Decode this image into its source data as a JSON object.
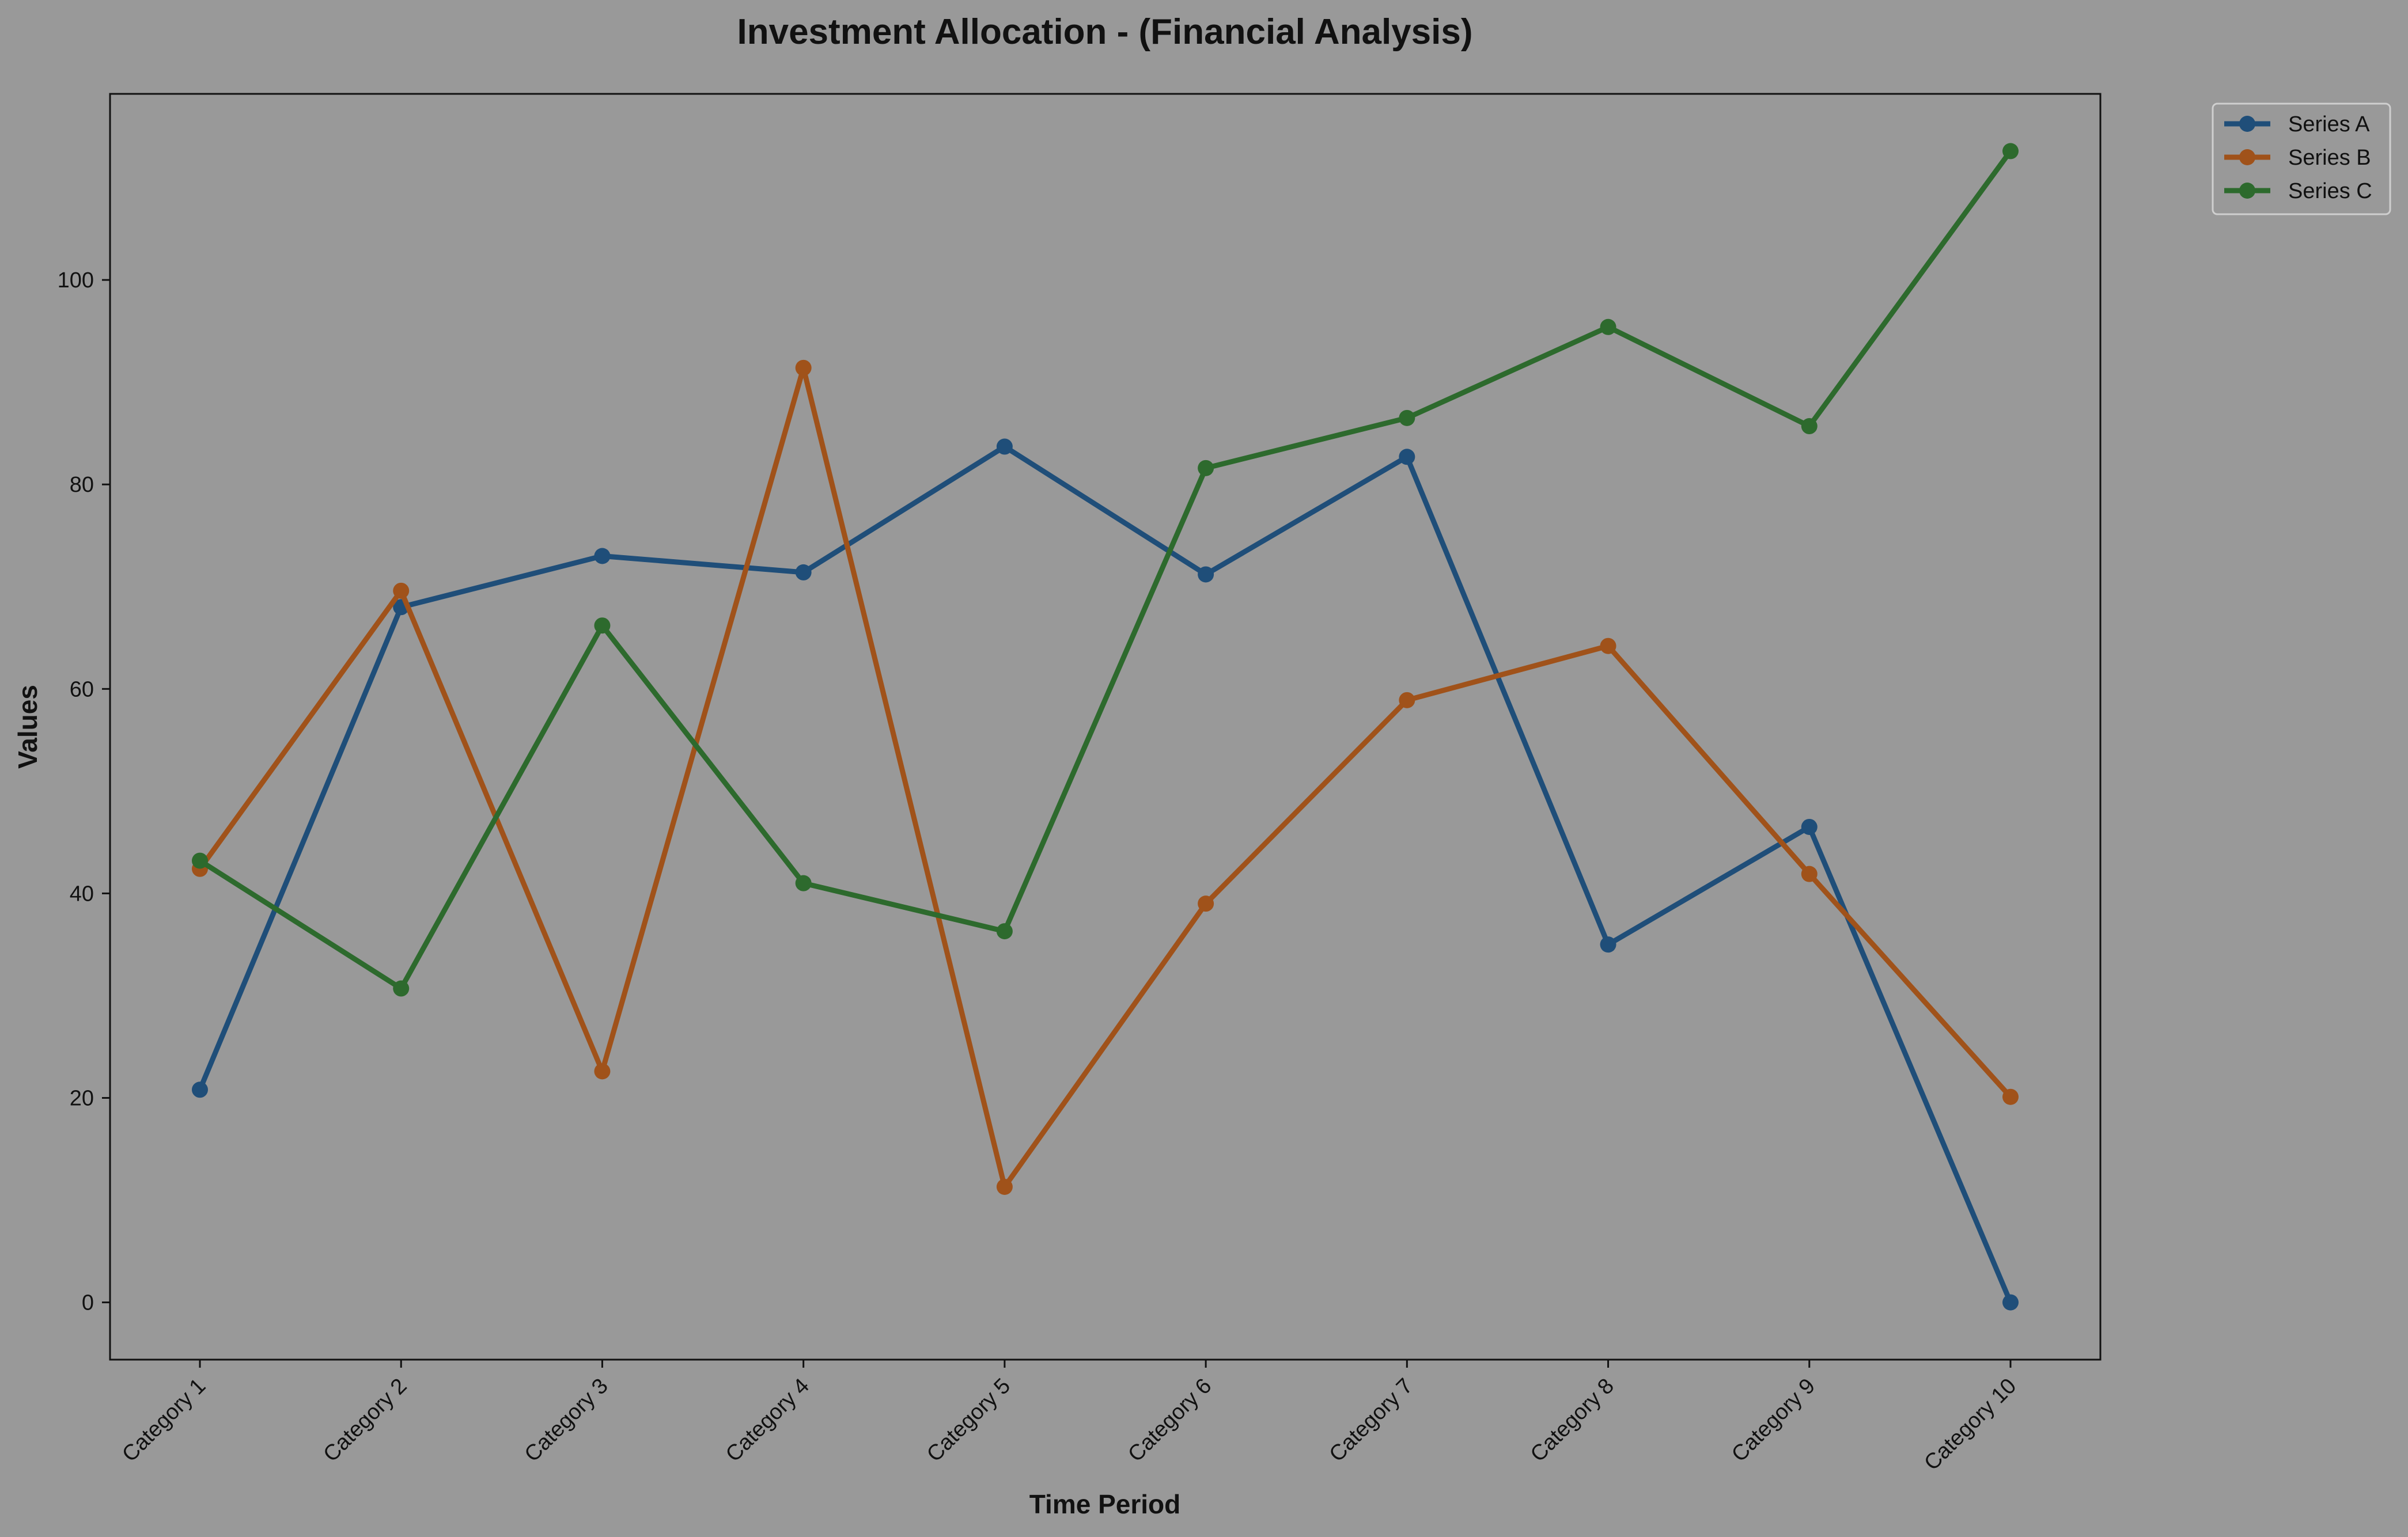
{
  "chart_data": {
    "type": "line",
    "title": "Investment Allocation - (Financial Analysis)",
    "xlabel": "Time Period",
    "ylabel": "Values",
    "categories": [
      "Category 1",
      "Category 2",
      "Category 3",
      "Category 4",
      "Category 5",
      "Category 6",
      "Category 7",
      "Category 8",
      "Category 9",
      "Category 10"
    ],
    "ylim": [
      -5.6,
      118.2
    ],
    "yticks": [
      0,
      20,
      40,
      60,
      80,
      100
    ],
    "grid": false,
    "legend_position": "top-right, outside plot",
    "series": [
      {
        "name": "Series A",
        "color": "#1f4e79",
        "values": [
          20.8,
          68.0,
          73.0,
          71.4,
          83.7,
          71.2,
          82.7,
          35.0,
          46.5,
          0.0
        ]
      },
      {
        "name": "Series B",
        "color": "#a0521a",
        "values": [
          42.4,
          69.6,
          22.6,
          91.4,
          11.3,
          39.0,
          58.9,
          64.2,
          41.9,
          20.1
        ]
      },
      {
        "name": "Series C",
        "color": "#2d6a2d",
        "values": [
          43.2,
          30.7,
          66.2,
          41.0,
          36.3,
          81.6,
          86.5,
          95.4,
          85.7,
          112.6
        ]
      }
    ]
  }
}
